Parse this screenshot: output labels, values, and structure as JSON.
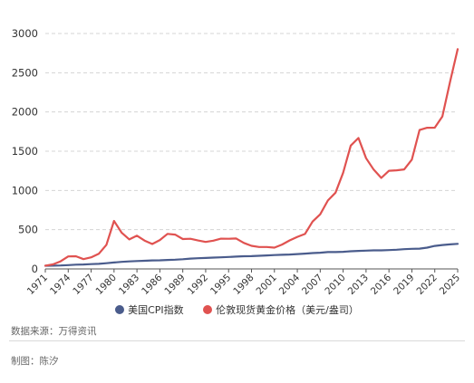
{
  "chart_data": {
    "type": "line",
    "title": "",
    "xlabel": "",
    "ylabel": "",
    "ylim": [
      0,
      3000
    ],
    "yticks": [
      0,
      500,
      1000,
      1500,
      2000,
      2500,
      3000
    ],
    "xlim": [
      1971,
      2025
    ],
    "xticks": [
      1971,
      1974,
      1977,
      1980,
      1983,
      1986,
      1989,
      1992,
      1995,
      1998,
      2001,
      2004,
      2007,
      2010,
      2013,
      2016,
      2019,
      2022,
      2025
    ],
    "grid": "horizontal dashed",
    "legend_position": "bottom",
    "series": [
      {
        "name": "美国CPI指数",
        "color": "#4a5c8c",
        "x": [
          1971,
          1972,
          1973,
          1974,
          1975,
          1976,
          1977,
          1978,
          1979,
          1980,
          1981,
          1982,
          1983,
          1984,
          1985,
          1986,
          1987,
          1988,
          1989,
          1990,
          1991,
          1992,
          1993,
          1994,
          1995,
          1996,
          1997,
          1998,
          1999,
          2000,
          2001,
          2002,
          2003,
          2004,
          2005,
          2006,
          2007,
          2008,
          2009,
          2010,
          2011,
          2012,
          2013,
          2014,
          2015,
          2016,
          2017,
          2018,
          2019,
          2020,
          2021,
          2022,
          2023,
          2024,
          2025
        ],
        "values": [
          40,
          42,
          44,
          49,
          54,
          57,
          61,
          65,
          73,
          82,
          90,
          96,
          100,
          104,
          108,
          110,
          114,
          118,
          124,
          131,
          136,
          140,
          144,
          148,
          152,
          157,
          161,
          163,
          167,
          172,
          177,
          180,
          184,
          189,
          195,
          202,
          207,
          215,
          215,
          218,
          225,
          230,
          233,
          237,
          237,
          240,
          245,
          251,
          256,
          259,
          271,
          293,
          305,
          313,
          320
        ]
      },
      {
        "name": "伦敦现货黄金价格（美元/盎司）",
        "color": "#e05250",
        "x": [
          1971,
          1972,
          1973,
          1974,
          1975,
          1976,
          1977,
          1978,
          1979,
          1980,
          1981,
          1982,
          1983,
          1984,
          1985,
          1986,
          1987,
          1988,
          1989,
          1990,
          1991,
          1992,
          1993,
          1994,
          1995,
          1996,
          1997,
          1998,
          1999,
          2000,
          2001,
          2002,
          2003,
          2004,
          2005,
          2006,
          2007,
          2008,
          2009,
          2010,
          2011,
          2012,
          2013,
          2014,
          2015,
          2016,
          2017,
          2018,
          2019,
          2020,
          2021,
          2022,
          2023,
          2024,
          2025
        ],
        "values": [
          41,
          58,
          97,
          159,
          161,
          125,
          148,
          193,
          307,
          612,
          460,
          376,
          424,
          361,
          317,
          368,
          447,
          437,
          381,
          384,
          362,
          344,
          360,
          385,
          384,
          388,
          331,
          294,
          279,
          279,
          271,
          310,
          363,
          409,
          445,
          604,
          696,
          872,
          972,
          1225,
          1572,
          1669,
          1411,
          1266,
          1160,
          1251,
          1257,
          1268,
          1393,
          1770,
          1799,
          1800,
          1943,
          2386,
          2800
        ]
      }
    ]
  },
  "legend": {
    "items": [
      {
        "label": "美国CPI指数",
        "color": "#4a5c8c"
      },
      {
        "label": "伦敦现货黄金价格（美元/盎司）",
        "color": "#e05250"
      }
    ]
  },
  "notes": {
    "source": "数据来源：万得资讯",
    "credit": "制图：陈汐"
  }
}
